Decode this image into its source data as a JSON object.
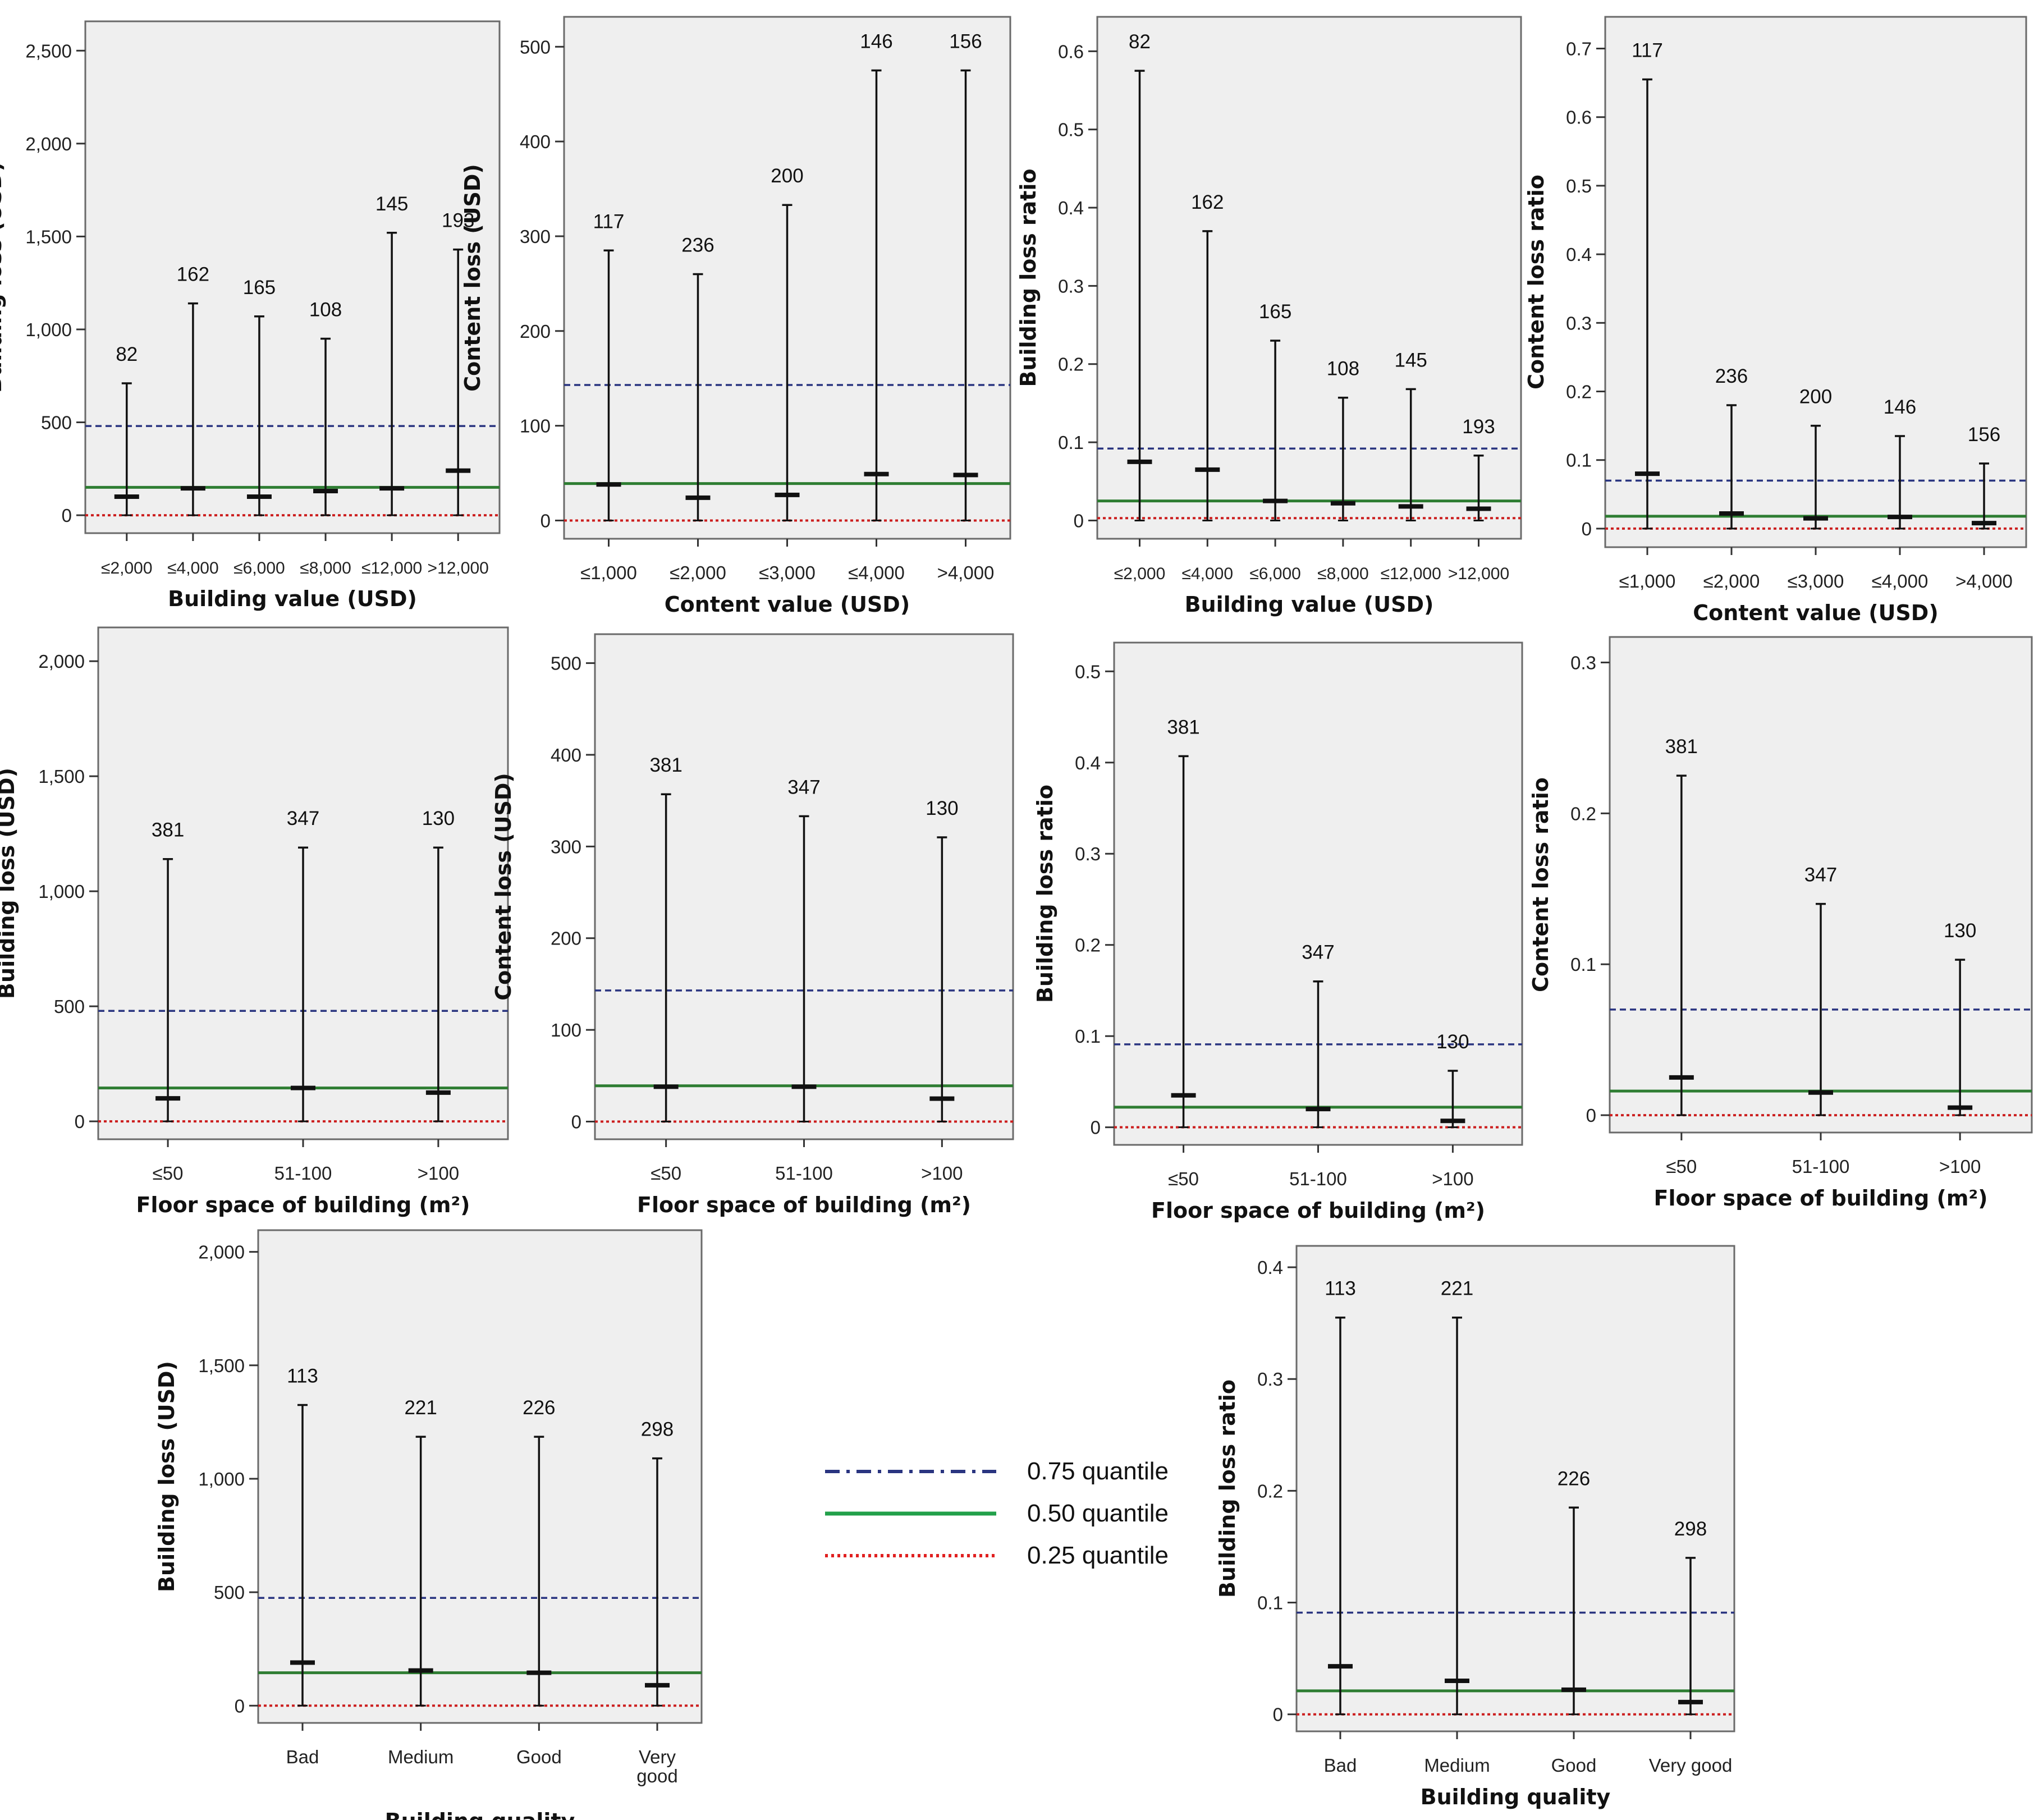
{
  "colors": {
    "q75": "#2a3580",
    "q50": "#2e7d32",
    "q25": "#cc1f1f",
    "plot_bg": "#efefef",
    "frame": "#6a6a6a"
  },
  "legend": {
    "items": [
      {
        "key": "q75",
        "label": "0.75 quantile",
        "style": "dashdot"
      },
      {
        "key": "q50",
        "label": "0.50 quantile",
        "style": "solid"
      },
      {
        "key": "q25",
        "label": "0.25 quantile",
        "style": "dotted"
      }
    ]
  },
  "chart_data": [
    {
      "id": "bl-bv",
      "type": "error-bar",
      "title": "",
      "ylabel": "Building loss (USD)",
      "xlabel": "Building value (USD)",
      "categories": [
        "≤2,000",
        "≤4,000",
        "≤6,000",
        "≤8,000",
        "≤12,000",
        ">12,000"
      ],
      "high": [
        710,
        1140,
        1070,
        950,
        1520,
        1430
      ],
      "mid": [
        100,
        145,
        100,
        130,
        145,
        240
      ],
      "counts": [
        "82",
        "162",
        "165",
        "108",
        "145",
        "193"
      ],
      "ylim": [
        0,
        2600
      ],
      "yticks": [
        0,
        500,
        1000,
        1500,
        2000,
        2500
      ],
      "ytick_labels": [
        "0",
        "500",
        "1,000",
        "1,500",
        "2,000",
        "2,500"
      ],
      "q75": 480,
      "q50": 150,
      "q25": 0
    },
    {
      "id": "cl-cv",
      "type": "error-bar",
      "title": "",
      "ylabel": "Content loss (USD)",
      "xlabel": "Content value (USD)",
      "categories": [
        "≤1,000",
        "≤2,000",
        "≤3,000",
        "≤4,000",
        ">4,000"
      ],
      "high": [
        285,
        260,
        333,
        475,
        475
      ],
      "mid": [
        38,
        24,
        27,
        49,
        48
      ],
      "counts": [
        "117",
        "236",
        "200",
        "146",
        "156"
      ],
      "ylim": [
        0,
        520
      ],
      "yticks": [
        0,
        100,
        200,
        300,
        400,
        500
      ],
      "ytick_labels": [
        "0",
        "100",
        "200",
        "300",
        "400",
        "500"
      ],
      "q75": 143,
      "q50": 39,
      "q25": 0
    },
    {
      "id": "blr-bv",
      "type": "error-bar",
      "title": "",
      "ylabel": "Building loss ratio",
      "xlabel": "Building value  (USD)",
      "categories": [
        "≤2,000",
        "≤4,000",
        "≤6,000",
        "≤8,000",
        "≤12,000",
        ">12,000"
      ],
      "high": [
        0.575,
        0.37,
        0.23,
        0.157,
        0.168,
        0.083
      ],
      "mid": [
        0.075,
        0.065,
        0.025,
        0.022,
        0.018,
        0.015
      ],
      "counts": [
        "82",
        "162",
        "165",
        "108",
        "145",
        "193"
      ],
      "ylim": [
        0,
        0.63
      ],
      "yticks": [
        0,
        0.1,
        0.2,
        0.3,
        0.4,
        0.5,
        0.6
      ],
      "ytick_labels": [
        "0",
        "0.1",
        "0.2",
        "0.3",
        "0.4",
        "0.5",
        "0.6"
      ],
      "q75": 0.092,
      "q50": 0.025,
      "q25": 0.003
    },
    {
      "id": "clr-cv",
      "type": "error-bar",
      "title": "",
      "ylabel": "Content loss ratio",
      "xlabel": "Content value (USD)",
      "categories": [
        "≤1,000",
        "≤2,000",
        "≤3,000",
        "≤4,000",
        ">4,000"
      ],
      "high": [
        0.655,
        0.18,
        0.15,
        0.135,
        0.095
      ],
      "mid": [
        0.08,
        0.022,
        0.015,
        0.017,
        0.008
      ],
      "counts": [
        "117",
        "236",
        "200",
        "146",
        "156"
      ],
      "ylim": [
        0,
        0.73
      ],
      "yticks": [
        0,
        0.1,
        0.2,
        0.3,
        0.4,
        0.5,
        0.6,
        0.7
      ],
      "ytick_labels": [
        "0",
        "0.1",
        "0.2",
        "0.3",
        "0.4",
        "0.5",
        "0.6",
        "0.7"
      ],
      "q75": 0.07,
      "q50": 0.018,
      "q25": 0
    },
    {
      "id": "bl-fs",
      "type": "error-bar",
      "title": "",
      "ylabel": "Building loss (USD)",
      "xlabel": "Floor space of building (m²)",
      "categories": [
        "≤50",
        "51-100",
        ">100"
      ],
      "high": [
        1140,
        1190,
        1190
      ],
      "mid": [
        100,
        145,
        125
      ],
      "counts": [
        "381",
        "347",
        "130"
      ],
      "ylim": [
        0,
        2100
      ],
      "yticks": [
        0,
        500,
        1000,
        1500,
        2000
      ],
      "ytick_labels": [
        "0",
        "500",
        "1,000",
        "1,500",
        "2,000"
      ],
      "q75": 480,
      "q50": 145,
      "q25": 0
    },
    {
      "id": "cl-fs",
      "type": "error-bar",
      "title": "",
      "ylabel": "Content loss (USD)",
      "xlabel": "Floor space of building (m²)",
      "categories": [
        "≤50",
        "51-100",
        ">100"
      ],
      "high": [
        357,
        333,
        310
      ],
      "mid": [
        38,
        38,
        25
      ],
      "counts": [
        "381",
        "347",
        "130"
      ],
      "ylim": [
        0,
        520
      ],
      "yticks": [
        0,
        100,
        200,
        300,
        400,
        500
      ],
      "ytick_labels": [
        "0",
        "100",
        "200",
        "300",
        "400",
        "500"
      ],
      "q75": 143,
      "q50": 39,
      "q25": 0
    },
    {
      "id": "blr-fs",
      "type": "error-bar",
      "title": "",
      "ylabel": "Building loss ratio",
      "xlabel": "Floor space of building (m²)",
      "categories": [
        "≤50",
        "51-100",
        ">100"
      ],
      "high": [
        0.407,
        0.16,
        0.062
      ],
      "mid": [
        0.035,
        0.02,
        0.007
      ],
      "counts": [
        "381",
        "347",
        "130"
      ],
      "ylim": [
        0,
        0.52
      ],
      "yticks": [
        0,
        0.1,
        0.2,
        0.3,
        0.4,
        0.5
      ],
      "ytick_labels": [
        "0",
        "0.1",
        "0.2",
        "0.3",
        "0.4",
        "0.5"
      ],
      "q75": 0.091,
      "q50": 0.022,
      "q25": 0
    },
    {
      "id": "clr-fs",
      "type": "error-bar",
      "title": "",
      "ylabel": "Content loss ratio",
      "xlabel": "Floor space of building (m²)",
      "categories": [
        "≤50",
        "51-100",
        ">100"
      ],
      "high": [
        0.225,
        0.14,
        0.103
      ],
      "mid": [
        0.025,
        0.015,
        0.005
      ],
      "counts": [
        "381",
        "347",
        "130"
      ],
      "ylim": [
        0,
        0.31
      ],
      "yticks": [
        0,
        0.1,
        0.2,
        0.3
      ],
      "ytick_labels": [
        "0",
        "0.1",
        "0.2",
        "0.3"
      ],
      "q75": 0.07,
      "q50": 0.016,
      "q25": 0
    },
    {
      "id": "bl-bq",
      "type": "error-bar",
      "title": "",
      "ylabel": "Building loss (USD)",
      "xlabel": "Building quality",
      "categories": [
        "Bad",
        "Medium",
        "Good",
        "Very good"
      ],
      "high": [
        1325,
        1185,
        1185,
        1090
      ],
      "mid": [
        190,
        155,
        145,
        90
      ],
      "counts": [
        "113",
        "221",
        "226",
        "298"
      ],
      "ylim": [
        0,
        2050
      ],
      "yticks": [
        0,
        500,
        1000,
        1500,
        2000
      ],
      "ytick_labels": [
        "0",
        "500",
        "1,000",
        "1,500",
        "2,000"
      ],
      "q75": 475,
      "q50": 145,
      "q25": 0
    },
    {
      "id": "blr-bq",
      "type": "error-bar",
      "title": "",
      "ylabel": "Building loss ratio",
      "xlabel": "Building quality",
      "categories": [
        "Bad",
        "Medium",
        "Good",
        "Very good"
      ],
      "high": [
        0.355,
        0.355,
        0.185,
        0.14
      ],
      "mid": [
        0.043,
        0.03,
        0.022,
        0.011
      ],
      "counts": [
        "113",
        "221",
        "226",
        "298"
      ],
      "ylim": [
        0,
        0.41
      ],
      "yticks": [
        0,
        0.1,
        0.2,
        0.3,
        0.4
      ],
      "ytick_labels": [
        "0",
        "0.1",
        "0.2",
        "0.3",
        "0.4"
      ],
      "q75": 0.091,
      "q50": 0.021,
      "q25": 0
    }
  ]
}
